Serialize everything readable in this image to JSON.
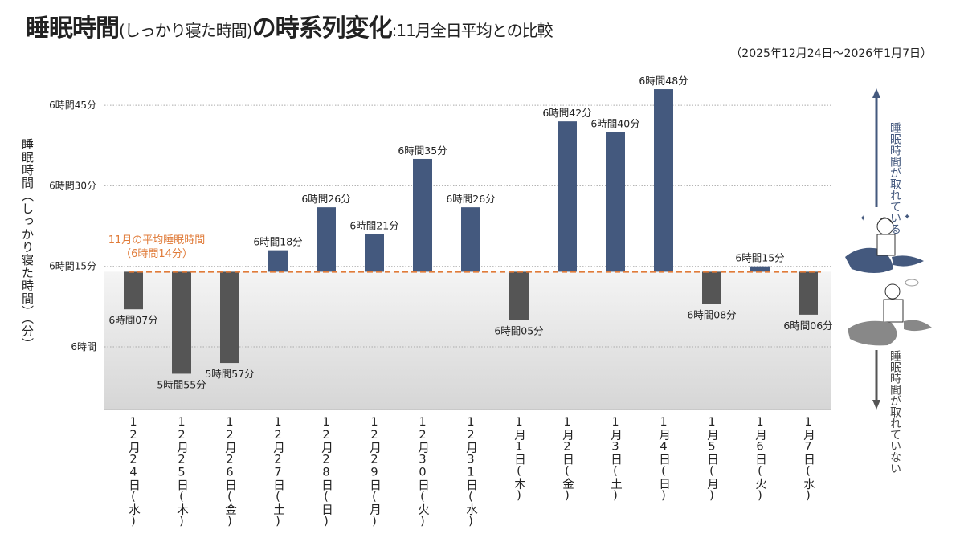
{
  "title": {
    "main": "睡眠時間",
    "paren": "(しっかり寝た時間)",
    "main2": "の時系列変化",
    "sub": ":11月全日平均との比較"
  },
  "period": "（2025年12月24日～2026年1月7日）",
  "side": {
    "up_label": "睡眠時間が取れている",
    "down_label": "睡眠時間が取れていない",
    "up_color": "#44597e",
    "down_color": "#555555"
  },
  "chart_data": {
    "type": "bar",
    "ylabel": "睡眠時間（しっかり寝た時間）（分）",
    "yticks": [
      {
        "value": 360,
        "label": "6時間"
      },
      {
        "value": 375,
        "label": "6時間15分"
      },
      {
        "value": 390,
        "label": "6時間30分"
      },
      {
        "value": 405,
        "label": "6時間45分"
      }
    ],
    "ylim": [
      354,
      410
    ],
    "grid": true,
    "baseline": {
      "value": 374,
      "label1": "11月の平均睡眠時間",
      "label2": "（6時間14分）",
      "color": "#e07b39"
    },
    "colors": {
      "above": "#44597e",
      "below": "#555555"
    },
    "categories": [
      "12月24日(水)",
      "12月25日(木)",
      "12月26日(金)",
      "12月27日(土)",
      "12月28日(日)",
      "12月29日(月)",
      "12月30日(火)",
      "12月31日(水)",
      "1月1日(木)",
      "1月2日(金)",
      "1月3日(土)",
      "1月4日(日)",
      "1月5日(月)",
      "1月6日(火)",
      "1月7日(水)"
    ],
    "values": [
      367,
      355,
      357,
      378,
      386,
      381,
      395,
      386,
      365,
      402,
      400,
      408,
      368,
      375,
      366
    ],
    "data_labels": [
      "6時間07分",
      "5時間55分",
      "5時間57分",
      "6時間18分",
      "6時間26分",
      "6時間21分",
      "6時間35分",
      "6時間26分",
      "6時間05分",
      "6時間42分",
      "6時間40分",
      "6時間48分",
      "6時間08分",
      "6時間15分",
      "6時間06分"
    ]
  }
}
